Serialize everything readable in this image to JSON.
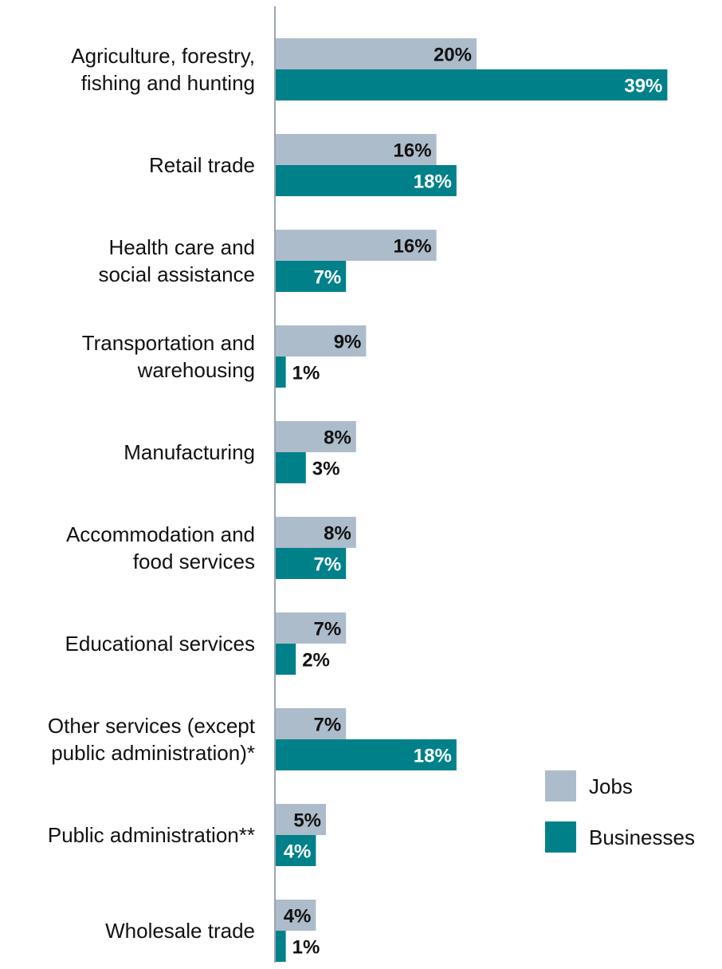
{
  "chart_data": {
    "type": "bar",
    "orientation": "horizontal",
    "categories": [
      [
        "Agriculture, forestry,",
        "fishing and hunting"
      ],
      [
        "Retail trade"
      ],
      [
        "Health care and",
        "social assistance"
      ],
      [
        "Transportation and",
        "warehousing"
      ],
      [
        "Manufacturing"
      ],
      [
        "Accommodation and",
        "food services"
      ],
      [
        "Educational services"
      ],
      [
        "Other services (except",
        "public administration)*"
      ],
      [
        "Public administration**"
      ],
      [
        "Wholesale trade"
      ]
    ],
    "series": [
      {
        "name": "Jobs",
        "color": "#adbccb",
        "values": [
          20,
          16,
          16,
          9,
          8,
          8,
          7,
          7,
          5,
          4
        ],
        "labels": [
          "20%",
          "16%",
          "16%",
          "9%",
          "8%",
          "8%",
          "7%",
          "7%",
          "5%",
          "4%"
        ]
      },
      {
        "name": "Businesses",
        "color": "#00818a",
        "values": [
          39,
          18,
          7,
          1,
          3,
          7,
          2,
          18,
          4,
          1
        ],
        "labels": [
          "39%",
          "18%",
          "7%",
          "1%",
          "3%",
          "7%",
          "2%",
          "18%",
          "4%",
          "1%"
        ]
      }
    ],
    "value_unit": "%",
    "xlim": [
      0,
      40
    ],
    "title": "",
    "xlabel": "",
    "ylabel": "",
    "legend_position": "right",
    "grid": false
  }
}
